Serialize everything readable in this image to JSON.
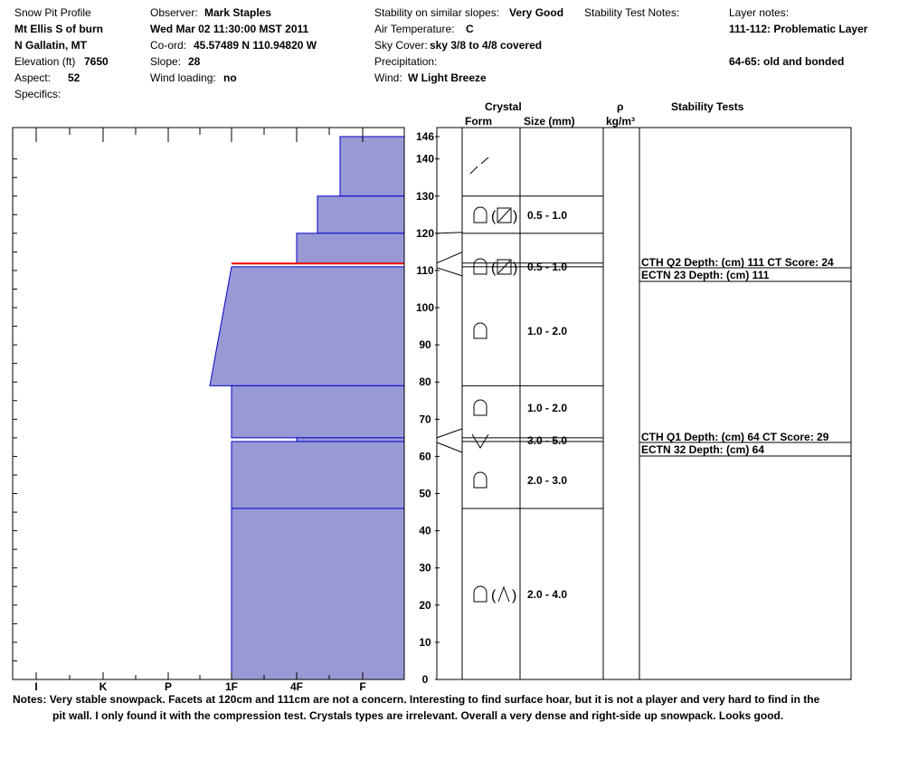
{
  "header": {
    "title": "Snow Pit Profile",
    "location": "Mt Ellis S of burn",
    "region": "N Gallatin, MT",
    "elevation_label": "Elevation (ft)",
    "elevation_value": "7650",
    "aspect_label": "Aspect:",
    "aspect_value": "52",
    "specifics_label": "Specifics:",
    "observer_label": "Observer:",
    "observer_value": "Mark Staples",
    "date": "Wed Mar 02 11:30:00 MST 2011",
    "coord_label": "Co-ord:",
    "coord_value": "45.57489 N 110.94820 W",
    "slope_label": "Slope:",
    "slope_value": "28",
    "wind_loading_label": "Wind loading:",
    "wind_loading_value": "no",
    "stability_label": "Stability on similar slopes:",
    "stability_value": "Very Good",
    "air_temp_label": "Air Temperature:",
    "air_temp_value": "C",
    "sky_label": "Sky Cover:",
    "sky_value": "sky 3/8 to 4/8 covered",
    "precip_label": "Precipitation:",
    "wind_label": "Wind:",
    "wind_value": "W Light Breeze",
    "stability_notes_label": "Stability Test Notes:",
    "layer_notes_label": "Layer notes:",
    "layer_note_1": "111-112: Problematic Layer",
    "layer_note_2": "64-65: old and bonded"
  },
  "columns": {
    "crystal": "Crystal",
    "form": "Form",
    "size": "Size (mm)",
    "rho": "ρ",
    "density_unit": "kg/m³",
    "stability_tests": "Stability Tests"
  },
  "notes": {
    "label": "Notes:",
    "line1": "Very stable snowpack.  Facets at 120cm and 111cm are not a concern.  Interesting to find surface hoar, but it is not a player and very hard to find in the",
    "line2": "pit wall.  I only found it with the compression test.  Crystals types are irrelevant.  Overall a very dense and right-side up snowpack.  Looks good."
  },
  "chart_data": {
    "type": "bar",
    "title": "",
    "xlabel": "",
    "ylabel": "",
    "ylim": [
      0,
      146
    ],
    "hardness_ticks": [
      "I",
      "K",
      "P",
      "1F",
      "4F",
      "F"
    ],
    "y_ticks": [
      "0",
      "10",
      "20",
      "30",
      "40",
      "50",
      "60",
      "70",
      "80",
      "90",
      "100",
      "110",
      "120",
      "130",
      "140",
      "146"
    ],
    "hardness_layers": [
      {
        "top": 146,
        "bottom": 130,
        "hardness": "F+"
      },
      {
        "top": 130,
        "bottom": 120,
        "hardness": "F-"
      },
      {
        "top": 120,
        "bottom": 112,
        "hardness": "4F"
      },
      {
        "top": 112,
        "bottom": 111,
        "hardness": "F-",
        "color": "#ff0000"
      },
      {
        "top": 111,
        "bottom": 79,
        "hardness_top": "1F",
        "hardness_bottom": "P+"
      },
      {
        "top": 79,
        "bottom": 65,
        "hardness": "1F"
      },
      {
        "top": 65,
        "bottom": 64,
        "hardness": "4F+"
      },
      {
        "top": 64,
        "bottom": 46,
        "hardness": "1F"
      },
      {
        "top": 46,
        "bottom": 0,
        "hardness": "1F"
      }
    ],
    "layer_boundaries": [
      130,
      120,
      112,
      111,
      79,
      65,
      64,
      46
    ],
    "crystal_rows": [
      {
        "top": 146,
        "bottom": 130,
        "form": "precip-particle",
        "size": ""
      },
      {
        "top": 130,
        "bottom": 120,
        "form": "rounded(faceted-rounded)",
        "size": "0.5 - 1.0"
      },
      {
        "top": 112,
        "bottom": 111,
        "form": "rounded(faceted-rounded)",
        "size": "0.5 - 1.0"
      },
      {
        "top": 111,
        "bottom": 79,
        "form": "rounded",
        "size": "1.0 - 2.0"
      },
      {
        "top": 79,
        "bottom": 65,
        "form": "rounded",
        "size": "1.0 - 2.0"
      },
      {
        "top": 65,
        "bottom": 64,
        "form": "surface-hoar",
        "size": "3.0 - 5.0"
      },
      {
        "top": 64,
        "bottom": 46,
        "form": "rounded",
        "size": "2.0 - 3.0"
      },
      {
        "top": 46,
        "bottom": 0,
        "form": "rounded(depth-hoar)",
        "size": "2.0 - 4.0"
      }
    ],
    "stability_tests": [
      {
        "depth": 111,
        "line1": "CTH Q2 Depth: (cm) 111 CT Score: 24",
        "line2": "ECTN 23  Depth: (cm) 111"
      },
      {
        "depth": 64,
        "line1": "CTH Q1 Depth: (cm) 64 CT Score: 29",
        "line2": "ECTN 32  Depth: (cm) 64"
      }
    ],
    "colors": {
      "fill": "#9999d6",
      "edge": "#0000cc",
      "weak": "#ff0000"
    }
  }
}
